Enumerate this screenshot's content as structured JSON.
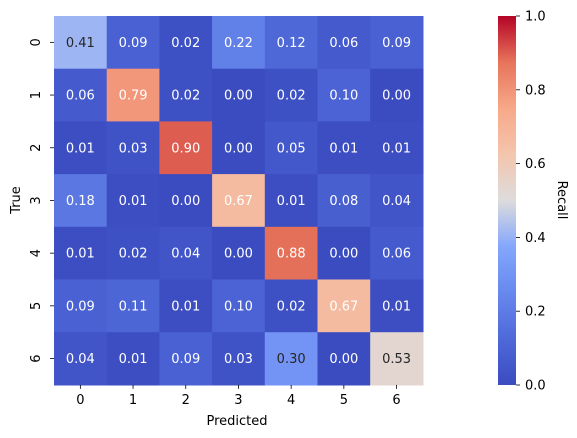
{
  "chart_data": {
    "type": "heatmap",
    "row_labels": [
      "0",
      "1",
      "2",
      "3",
      "4",
      "5",
      "6"
    ],
    "col_labels": [
      "0",
      "1",
      "2",
      "3",
      "4",
      "5",
      "6"
    ],
    "values": [
      [
        0.41,
        0.09,
        0.02,
        0.22,
        0.12,
        0.06,
        0.09
      ],
      [
        0.06,
        0.79,
        0.02,
        0.0,
        0.02,
        0.1,
        0.0
      ],
      [
        0.01,
        0.03,
        0.9,
        0.0,
        0.05,
        0.01,
        0.01
      ],
      [
        0.18,
        0.01,
        0.0,
        0.67,
        0.01,
        0.08,
        0.04
      ],
      [
        0.01,
        0.02,
        0.04,
        0.0,
        0.88,
        0.0,
        0.06
      ],
      [
        0.09,
        0.11,
        0.01,
        0.1,
        0.02,
        0.67,
        0.01
      ],
      [
        0.04,
        0.01,
        0.09,
        0.03,
        0.3,
        0.0,
        0.53
      ]
    ],
    "xlabel": "Predicted",
    "ylabel": "True",
    "colorbar_label": "Recall",
    "colormap": "coolwarm",
    "vmin": 0.0,
    "vmax": 1.0,
    "colorbar_ticks": [
      "0.0",
      "0.2",
      "0.4",
      "0.6",
      "0.8",
      "1.0"
    ],
    "dark_text_color": "#262626",
    "light_text_color": "#ffffff"
  }
}
